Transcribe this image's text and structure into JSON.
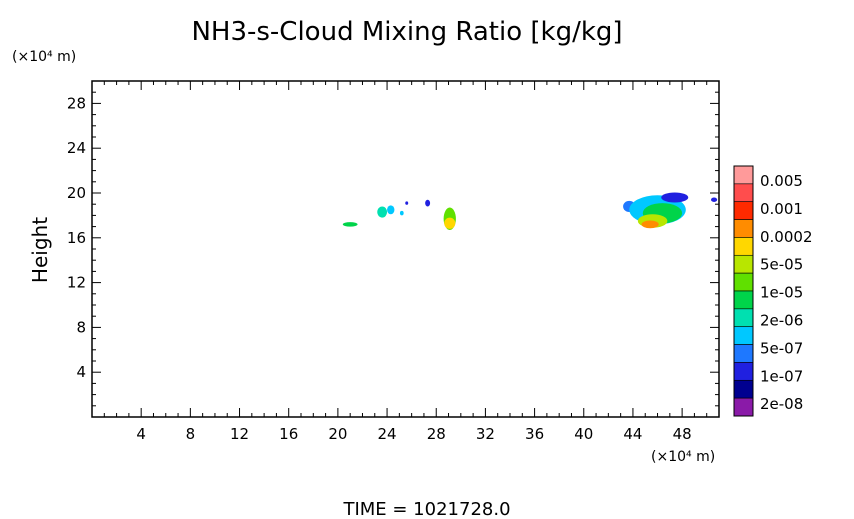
{
  "chart_data": {
    "type": "heatmap",
    "title": "NH3-s-Cloud Mixing Ratio [kg/kg]",
    "ylabel": "Height",
    "x_unit": "(×10⁴ m)",
    "y_unit": "(×10⁴ m)",
    "xlim": [
      0,
      51
    ],
    "ylim": [
      0,
      30
    ],
    "x_ticks": [
      4,
      8,
      12,
      16,
      20,
      24,
      28,
      32,
      36,
      40,
      44,
      48
    ],
    "y_ticks": [
      4,
      8,
      12,
      16,
      20,
      24,
      28
    ],
    "time_label": "TIME  =  1021728.0",
    "colorbar": {
      "labels": [
        "0.005",
        "0.001",
        "0.0002",
        "5e-05",
        "1e-05",
        "2e-06",
        "5e-07",
        "1e-07",
        "2e-08"
      ],
      "colors": [
        "#ff9a9a",
        "#ff4d4d",
        "#ff2a00",
        "#ff8c00",
        "#ffd700",
        "#b8e600",
        "#60e000",
        "#00d44a",
        "#00e0b0",
        "#00c8ff",
        "#1e78ff",
        "#2020e0",
        "#000090",
        "#8a1aa8"
      ]
    },
    "cloud_patches": [
      {
        "x": 21.0,
        "y": 17.2,
        "rx": 0.6,
        "ry": 0.2,
        "level": 7
      },
      {
        "x": 23.6,
        "y": 18.3,
        "rx": 0.4,
        "ry": 0.5,
        "level": 8
      },
      {
        "x": 24.3,
        "y": 18.5,
        "rx": 0.3,
        "ry": 0.4,
        "level": 9
      },
      {
        "x": 25.2,
        "y": 18.2,
        "rx": 0.15,
        "ry": 0.2,
        "level": 9
      },
      {
        "x": 25.6,
        "y": 19.1,
        "rx": 0.12,
        "ry": 0.15,
        "level": 11
      },
      {
        "x": 27.3,
        "y": 19.1,
        "rx": 0.2,
        "ry": 0.3,
        "level": 11
      },
      {
        "x": 29.1,
        "y": 17.7,
        "rx": 0.5,
        "ry": 1.0,
        "level": 6
      },
      {
        "x": 29.1,
        "y": 17.3,
        "rx": 0.45,
        "ry": 0.5,
        "level": 4
      },
      {
        "x": 43.7,
        "y": 18.8,
        "rx": 0.5,
        "ry": 0.5,
        "level": 10
      },
      {
        "x": 46.0,
        "y": 18.5,
        "rx": 2.3,
        "ry": 1.3,
        "level": 9
      },
      {
        "x": 46.4,
        "y": 18.2,
        "rx": 1.6,
        "ry": 0.9,
        "level": 7
      },
      {
        "x": 45.6,
        "y": 17.5,
        "rx": 1.2,
        "ry": 0.6,
        "level": 5
      },
      {
        "x": 45.4,
        "y": 17.2,
        "rx": 0.7,
        "ry": 0.35,
        "level": 3
      },
      {
        "x": 47.4,
        "y": 19.6,
        "rx": 1.1,
        "ry": 0.45,
        "level": 11
      },
      {
        "x": 50.6,
        "y": 19.4,
        "rx": 0.25,
        "ry": 0.2,
        "level": 11
      }
    ]
  }
}
